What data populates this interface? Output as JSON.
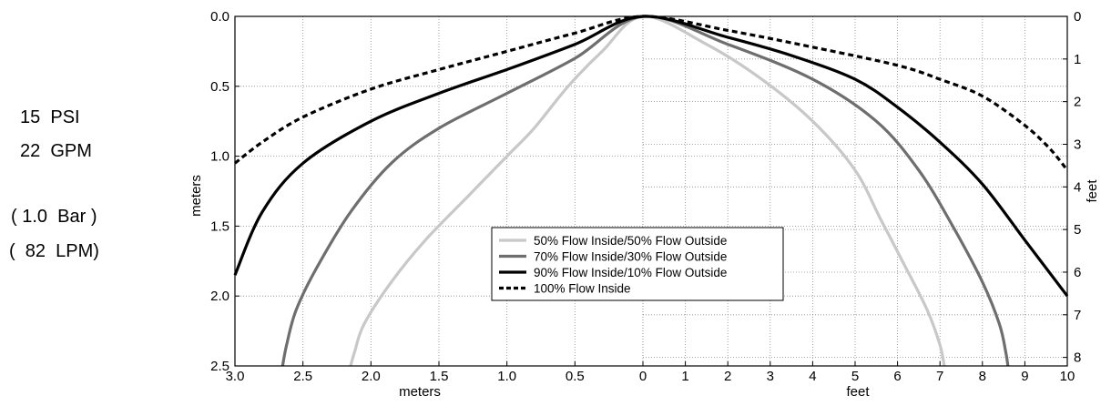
{
  "side_panel": {
    "pressure_psi": "15  PSI",
    "flow_gpm": "22  GPM",
    "pressure_bar": "( 1.0  Bar )",
    "flow_lpm": "(  82  LPM)"
  },
  "chart_data": {
    "type": "line",
    "title": "",
    "grid": true,
    "legend_position": "center",
    "left_ylabel": "meters",
    "right_ylabel": "feet",
    "left_xlabel": "meters",
    "right_xlabel": "feet",
    "left_xticks": [
      "3.0",
      "2.5",
      "2.0",
      "1.5",
      "1.0",
      "0.5",
      "0"
    ],
    "right_xticks": [
      "0",
      "1",
      "2",
      "3",
      "4",
      "5",
      "6",
      "7",
      "8",
      "9",
      "10"
    ],
    "left_yticks": [
      "0.0",
      "0.5",
      "1.0",
      "1.5",
      "2.0",
      "2.5"
    ],
    "right_yticks": [
      "0",
      "1",
      "2",
      "3",
      "4",
      "5",
      "6",
      "7",
      "8"
    ],
    "left_xlim_m": [
      3.0,
      0
    ],
    "right_xlim_ft": [
      0,
      10
    ],
    "ylim_m": [
      0,
      2.5
    ],
    "ylim_ft": [
      0,
      8.2
    ],
    "x_unit_note": "x values are horizontal distance from center in meters (left side) and feet (right side); y values are depth in meters",
    "series": [
      {
        "name": "50% Flow Inside/50% Flow Outside",
        "color": "#c8c8c8",
        "dash": "none",
        "left_points_m": [
          [
            0,
            0
          ],
          [
            0.3,
            0.25
          ],
          [
            0.55,
            0.5
          ],
          [
            0.8,
            0.8
          ],
          [
            1.0,
            1.0
          ],
          [
            1.3,
            1.3
          ],
          [
            1.6,
            1.6
          ],
          [
            1.85,
            1.9
          ],
          [
            2.05,
            2.2
          ],
          [
            2.12,
            2.4
          ],
          [
            2.15,
            2.5
          ]
        ],
        "right_points_ft": [
          [
            0,
            0
          ],
          [
            1.5,
            0.2
          ],
          [
            2.8,
            0.45
          ],
          [
            4,
            0.75
          ],
          [
            5,
            1.1
          ],
          [
            5.6,
            1.45
          ],
          [
            6.2,
            1.8
          ],
          [
            6.7,
            2.1
          ],
          [
            7.0,
            2.35
          ],
          [
            7.1,
            2.5
          ]
        ]
      },
      {
        "name": "70% Flow Inside/30% Flow Outside",
        "color": "#6e6e6e",
        "dash": "none",
        "left_points_m": [
          [
            0,
            0
          ],
          [
            0.5,
            0.3
          ],
          [
            1.0,
            0.55
          ],
          [
            1.5,
            0.8
          ],
          [
            1.85,
            1.05
          ],
          [
            2.15,
            1.4
          ],
          [
            2.4,
            1.8
          ],
          [
            2.55,
            2.1
          ],
          [
            2.62,
            2.35
          ],
          [
            2.65,
            2.5
          ]
        ],
        "right_points_ft": [
          [
            0,
            0
          ],
          [
            2,
            0.2
          ],
          [
            4,
            0.45
          ],
          [
            5.5,
            0.75
          ],
          [
            6.5,
            1.1
          ],
          [
            7.3,
            1.5
          ],
          [
            8,
            1.9
          ],
          [
            8.4,
            2.2
          ],
          [
            8.55,
            2.4
          ],
          [
            8.6,
            2.5
          ]
        ]
      },
      {
        "name": "90% Flow Inside/10% Flow Outside",
        "color": "#000000",
        "dash": "none",
        "left_points_m": [
          [
            0,
            0
          ],
          [
            0.5,
            0.2
          ],
          [
            1.0,
            0.38
          ],
          [
            1.5,
            0.55
          ],
          [
            2.0,
            0.75
          ],
          [
            2.5,
            1.05
          ],
          [
            2.8,
            1.4
          ],
          [
            3.0,
            1.85
          ]
        ],
        "right_points_ft": [
          [
            0,
            0
          ],
          [
            2,
            0.15
          ],
          [
            3.5,
            0.28
          ],
          [
            5,
            0.45
          ],
          [
            6,
            0.65
          ],
          [
            7,
            0.9
          ],
          [
            8,
            1.2
          ],
          [
            9,
            1.6
          ],
          [
            10,
            2.0
          ]
        ]
      },
      {
        "name": "100% Flow Inside",
        "color": "#000000",
        "dash": "6,4",
        "left_points_m": [
          [
            0,
            0
          ],
          [
            0.5,
            0.12
          ],
          [
            1.0,
            0.25
          ],
          [
            1.5,
            0.38
          ],
          [
            2.0,
            0.52
          ],
          [
            2.5,
            0.72
          ],
          [
            2.8,
            0.9
          ],
          [
            3.0,
            1.05
          ]
        ],
        "right_points_ft": [
          [
            0,
            0
          ],
          [
            2,
            0.1
          ],
          [
            4,
            0.22
          ],
          [
            6,
            0.35
          ],
          [
            7,
            0.45
          ],
          [
            8,
            0.57
          ],
          [
            9,
            0.78
          ],
          [
            9.6,
            0.95
          ],
          [
            10,
            1.1
          ]
        ]
      }
    ]
  }
}
